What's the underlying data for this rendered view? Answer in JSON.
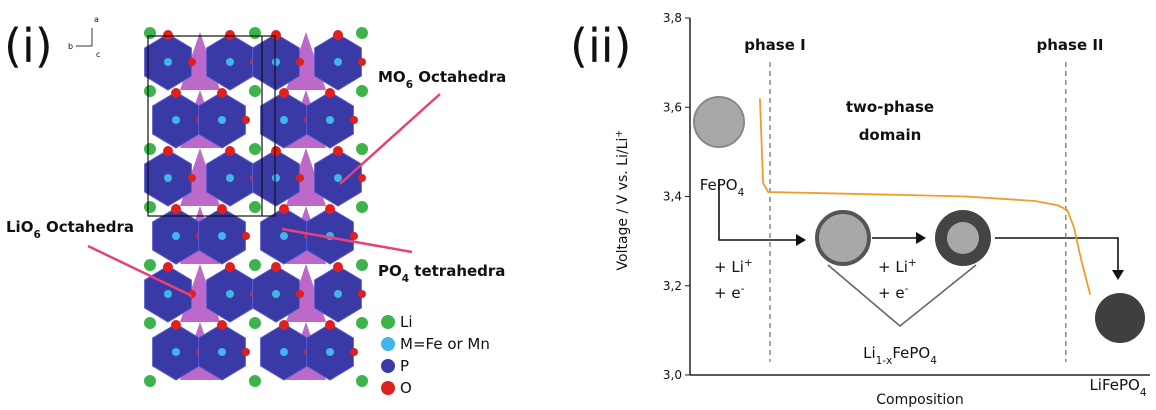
{
  "panel_i": {
    "label": "(i)",
    "orientation": [
      "b",
      "a",
      "c"
    ],
    "annotations": [
      [
        {
          "text": "MO"
        },
        {
          "text": "6",
          "pos": "sub"
        },
        {
          "text": " Octahedra"
        }
      ],
      [
        {
          "text": "LiO"
        },
        {
          "text": "6",
          "pos": "sub"
        },
        {
          "text": " Octahedra"
        }
      ],
      [
        {
          "text": "PO"
        },
        {
          "text": "4",
          "pos": "sub"
        },
        {
          "text": " tetrahedra"
        }
      ]
    ],
    "legend": [
      "Li",
      "M=Fe or Mn",
      "P",
      "O"
    ]
  },
  "chart_data": {
    "type": "line",
    "panel_label": "(ii)",
    "ylabel": [
      {
        "text": "Voltage / V vs. Li/Li"
      },
      {
        "text": "+",
        "pos": "super"
      }
    ],
    "xlabel": "Composition",
    "xlim": [
      0,
      1
    ],
    "ylim": [
      3.0,
      3.8
    ],
    "yticks": [
      {
        "value": 3.0,
        "label": "3,0"
      },
      {
        "value": 3.2,
        "label": "3,2"
      },
      {
        "value": 3.4,
        "label": "3,4"
      },
      {
        "value": 3.6,
        "label": "3,6"
      },
      {
        "value": 3.8,
        "label": "3,8"
      }
    ],
    "series": [
      {
        "color": "#f39a2c",
        "x": [
          0.152,
          0.159,
          0.17,
          0.4,
          0.6,
          0.75,
          0.8,
          0.82,
          0.835,
          0.85,
          0.87
        ],
        "values": [
          3.62,
          3.43,
          3.41,
          3.405,
          3.4,
          3.39,
          3.38,
          3.37,
          3.33,
          3.26,
          3.18
        ]
      }
    ],
    "phase_boundaries": [
      0.174,
      0.817
    ],
    "phase_labels": [
      "phase I",
      "phase II"
    ],
    "domain_label": [
      "two-phase",
      "domain"
    ],
    "species": [
      [
        {
          "text": "FePO"
        },
        {
          "text": "4",
          "pos": "sub"
        }
      ],
      [
        {
          "text": "Li"
        },
        {
          "text": "1-x",
          "pos": "sub"
        },
        {
          "text": "FePO"
        },
        {
          "text": "4",
          "pos": "sub"
        }
      ],
      [
        {
          "text": "LiFePO"
        },
        {
          "text": "4",
          "pos": "sub"
        }
      ]
    ],
    "reactants": [
      [
        {
          "text": "+ Li"
        },
        {
          "text": "+",
          "pos": "super"
        }
      ],
      [
        {
          "text": "+ e"
        },
        {
          "text": "-",
          "pos": "super"
        }
      ]
    ]
  }
}
